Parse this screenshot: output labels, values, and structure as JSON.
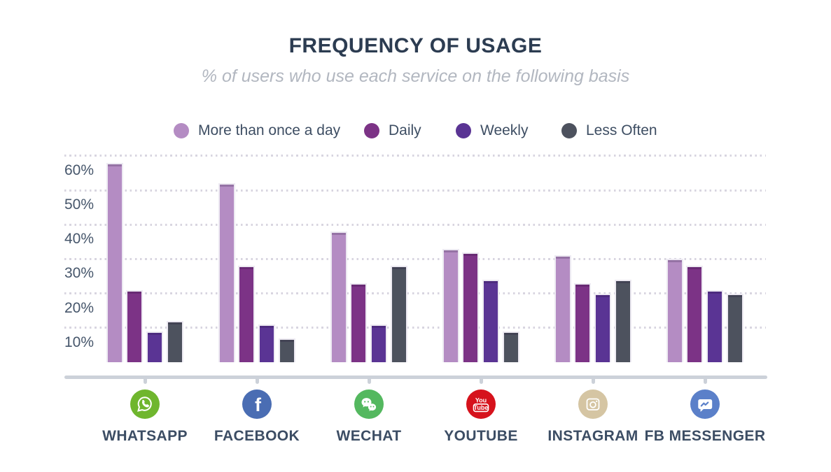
{
  "title": "FREQUENCY OF USAGE",
  "subtitle": "% of users who use each service on the following basis",
  "legend": [
    {
      "label": "More than once a day",
      "color": "#b48cc3"
    },
    {
      "label": "Daily",
      "color": "#7c3386"
    },
    {
      "label": "Weekly",
      "color": "#5a3494"
    },
    {
      "label": "Less Often",
      "color": "#4d525e"
    }
  ],
  "y_axis": {
    "ticks": [
      {
        "value": 60,
        "label": "60%"
      },
      {
        "value": 50,
        "label": "50%"
      },
      {
        "value": 40,
        "label": "40%"
      },
      {
        "value": 30,
        "label": "30%"
      },
      {
        "value": 20,
        "label": "20%"
      },
      {
        "value": 10,
        "label": "10%"
      }
    ],
    "grid_style": "dotted"
  },
  "services": [
    {
      "label": "WHATSAPP",
      "icon": "whatsapp-icon",
      "icon_color": "#6fb62e"
    },
    {
      "label": "FACEBOOK",
      "icon": "facebook-icon",
      "icon_color": "#4a6db3",
      "icon_text": "f"
    },
    {
      "label": "WECHAT",
      "icon": "wechat-icon",
      "icon_color": "#54b85f"
    },
    {
      "label": "YOUTUBE",
      "icon": "youtube-icon",
      "icon_color": "#d6121c",
      "icon_text_top": "You",
      "icon_text_bottom": "Tube"
    },
    {
      "label": "INSTAGRAM",
      "icon": "instagram-icon",
      "icon_color": "#d5c5a3"
    },
    {
      "label": "FB MESSENGER",
      "icon": "fb-messenger-icon",
      "icon_color": "#5b80c9"
    }
  ],
  "chart_data": {
    "type": "bar",
    "title": "FREQUENCY OF USAGE",
    "subtitle": "% of users who use each service on the following basis",
    "categories": [
      "WHATSAPP",
      "FACEBOOK",
      "WECHAT",
      "YOUTUBE",
      "INSTAGRAM",
      "FB MESSENGER"
    ],
    "unit": "%",
    "series": [
      {
        "name": "More than once a day",
        "color": "#b48cc3",
        "values": [
          58,
          52,
          38,
          33,
          31,
          30
        ]
      },
      {
        "name": "Daily",
        "color": "#7c3386",
        "values": [
          21,
          28,
          23,
          32,
          23,
          28
        ]
      },
      {
        "name": "Weekly",
        "color": "#5a3494",
        "values": [
          9,
          11,
          11,
          24,
          20,
          21
        ]
      },
      {
        "name": "Less Often",
        "color": "#4d525e",
        "values": [
          12,
          7,
          28,
          9,
          24,
          20
        ]
      }
    ],
    "yticks": [
      10,
      20,
      30,
      40,
      50,
      60
    ],
    "ylim": [
      0,
      65
    ],
    "grid": "horizontal dotted",
    "legend_position": "top"
  }
}
